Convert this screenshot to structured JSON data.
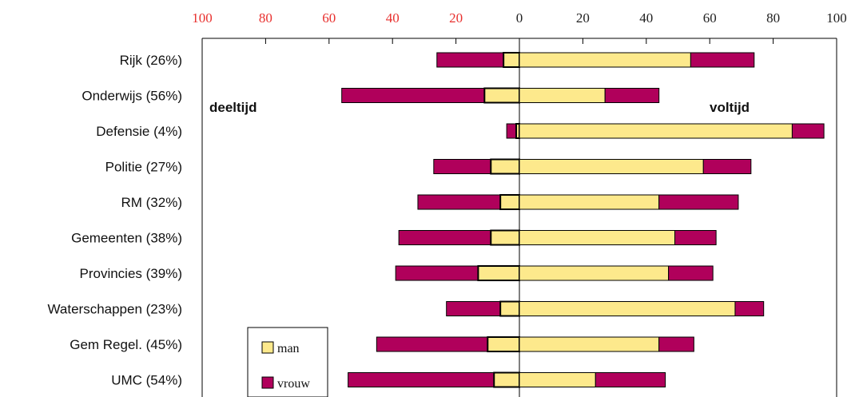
{
  "chart_data": {
    "type": "bar",
    "orientation": "horizontal-diverging",
    "x_ticks_left": [
      "100",
      "80",
      "60",
      "40",
      "20"
    ],
    "x_ticks_right": [
      "0",
      "20",
      "40",
      "60",
      "80",
      "100"
    ],
    "xlim": [
      -100,
      100
    ],
    "categories": [
      "Rijk (26%)",
      "Onderwijs (56%)",
      "Defensie (4%)",
      "Politie (27%)",
      "RM (32%)",
      "Gemeenten (38%)",
      "Provincies (39%)",
      "Waterschappen (23%)",
      "Gem Regel. (45%)",
      "UMC (54%)"
    ],
    "side_labels": {
      "left": "deeltijd",
      "right": "voltijd"
    },
    "deeltijd": {
      "man": [
        5,
        11,
        1,
        9,
        6,
        9,
        13,
        6,
        10,
        8
      ],
      "vrouw": [
        21,
        45,
        3,
        18,
        26,
        29,
        26,
        17,
        35,
        46
      ]
    },
    "voltijd": {
      "man": [
        54,
        27,
        86,
        58,
        44,
        49,
        47,
        68,
        44,
        24
      ],
      "vrouw": [
        20,
        17,
        10,
        15,
        25,
        13,
        14,
        9,
        11,
        22
      ]
    },
    "legend": [
      {
        "name": "man",
        "color": "#fde98c"
      },
      {
        "name": "vrouw",
        "color": "#b0005b"
      }
    ],
    "colors": {
      "man": "#fde98c",
      "vrouw": "#b0005b",
      "tick_left": "#e8302e",
      "tick_right": "#222222"
    }
  }
}
